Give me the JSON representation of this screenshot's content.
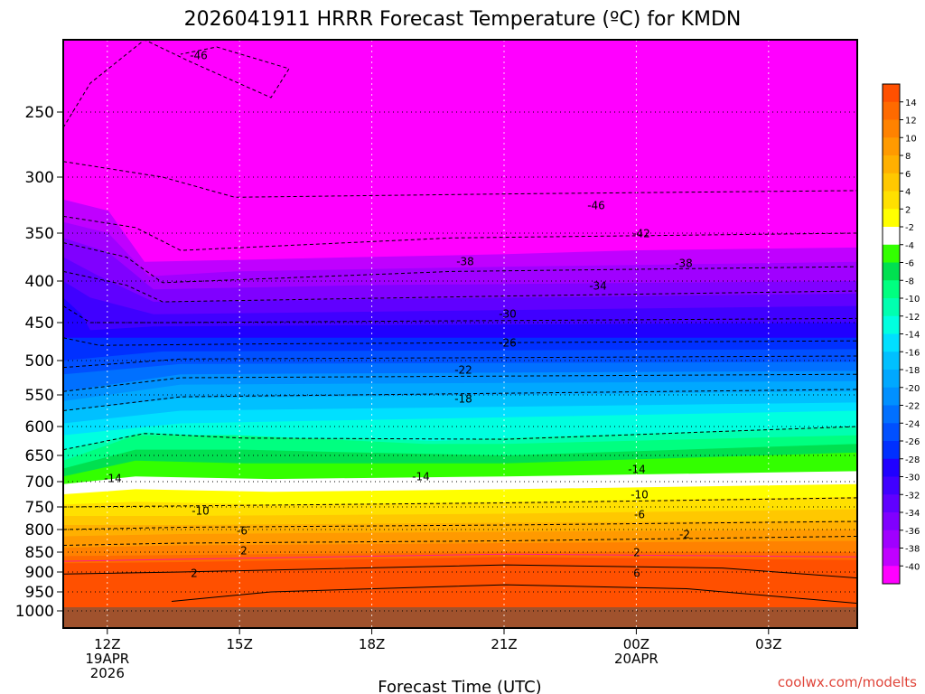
{
  "chart_data": {
    "type": "heatmap",
    "title": "2026041911 HRRR Forecast Temperature (ºC) for KMDN",
    "xlabel": "Forecast Time (UTC)",
    "ylabel": "",
    "x_ticks": [
      {
        "hour": 1,
        "lines": [
          "12Z",
          "19APR",
          "2026"
        ]
      },
      {
        "hour": 4,
        "lines": [
          "15Z"
        ]
      },
      {
        "hour": 7,
        "lines": [
          "18Z"
        ]
      },
      {
        "hour": 10,
        "lines": [
          "21Z"
        ]
      },
      {
        "hour": 13,
        "lines": [
          "00Z",
          "20APR"
        ]
      },
      {
        "hour": 16,
        "lines": [
          "03Z"
        ]
      }
    ],
    "x_range_hours": [
      0,
      18
    ],
    "y_ticks": [
      250,
      300,
      350,
      400,
      450,
      500,
      550,
      600,
      650,
      700,
      750,
      800,
      850,
      900,
      950,
      1000
    ],
    "y_range_hPa": [
      1030,
      200
    ],
    "ground_level_hPa": 990,
    "colorbar": {
      "labels": [
        14,
        12,
        10,
        8,
        6,
        4,
        2,
        -2,
        -4,
        -6,
        -8,
        -10,
        -12,
        -14,
        -16,
        -18,
        -20,
        -22,
        -24,
        -26,
        -28,
        -30,
        -32,
        -34,
        -36,
        -38,
        -40
      ],
      "colors": [
        "#ff5000",
        "#ff6a00",
        "#ff8200",
        "#ff9a00",
        "#ffb000",
        "#ffc800",
        "#ffe000",
        "#ffff00",
        "#ffffff",
        "#33ff00",
        "#00e050",
        "#00ff80",
        "#00ffb0",
        "#00ffe0",
        "#00e0ff",
        "#00c0ff",
        "#00a8ff",
        "#0090ff",
        "#0070ff",
        "#0050ff",
        "#0030ff",
        "#2000ff",
        "#4000ff",
        "#6000ff",
        "#8000ff",
        "#a000ff",
        "#c000ff",
        "#ff00ff"
      ]
    },
    "contour_levels": [
      -46,
      -42,
      -38,
      -34,
      -30,
      -26,
      -22,
      -18,
      -14,
      -10,
      -6,
      -2,
      2,
      6
    ],
    "contour_label_values": [
      "-46",
      "-46",
      "-42",
      "-38",
      "-38",
      "-34",
      "-30",
      "-26",
      "-22",
      "-18",
      "-14",
      "-14",
      "-14",
      "-10",
      "-10",
      "-6",
      "-6",
      "-2",
      "2",
      "2",
      "2",
      "6"
    ]
  },
  "credit": "coolwx.com/modelts"
}
